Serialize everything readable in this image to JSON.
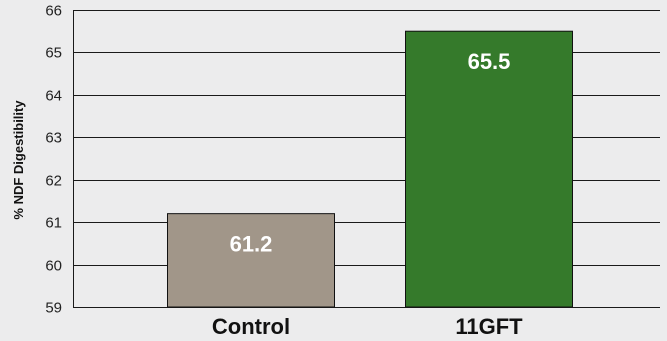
{
  "chart_data": {
    "type": "bar",
    "title": "",
    "xlabel": "",
    "ylabel": "% NDF Digestibility",
    "ylim": [
      59,
      66
    ],
    "yticks": [
      59,
      60,
      61,
      62,
      63,
      64,
      65,
      66
    ],
    "grid": true,
    "categories": [
      "Control",
      "11GFT"
    ],
    "values": [
      61.2,
      65.5
    ],
    "value_labels": [
      "61.2",
      "65.5"
    ],
    "colors": [
      "#a19689",
      "#357a2b"
    ],
    "grid_color": "#1a1a1a"
  }
}
